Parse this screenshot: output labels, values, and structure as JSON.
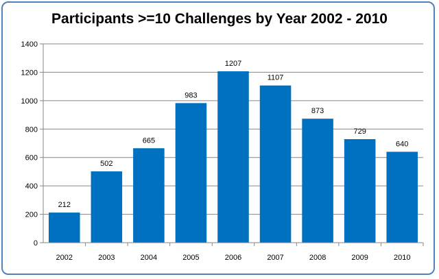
{
  "chart_data": {
    "type": "bar",
    "title": "Participants >=10 Challenges by Year 2002 - 2010",
    "xlabel": "",
    "ylabel": "",
    "categories": [
      "2002",
      "2003",
      "2004",
      "2005",
      "2006",
      "2007",
      "2008",
      "2009",
      "2010"
    ],
    "values": [
      212,
      502,
      665,
      983,
      1207,
      1107,
      873,
      729,
      640
    ],
    "data_labels": [
      "212",
      "502",
      "665",
      "983",
      "1207",
      "1107",
      "873",
      "729",
      "640"
    ],
    "ylim": [
      0,
      1400
    ],
    "yticks": [
      "0",
      "200",
      "400",
      "600",
      "800",
      "1000",
      "1200",
      "1400"
    ],
    "grid": true,
    "legend": "none",
    "colors": {
      "bar": "#0070c0",
      "frame": "#4f81bd",
      "grid": "#868686"
    }
  }
}
